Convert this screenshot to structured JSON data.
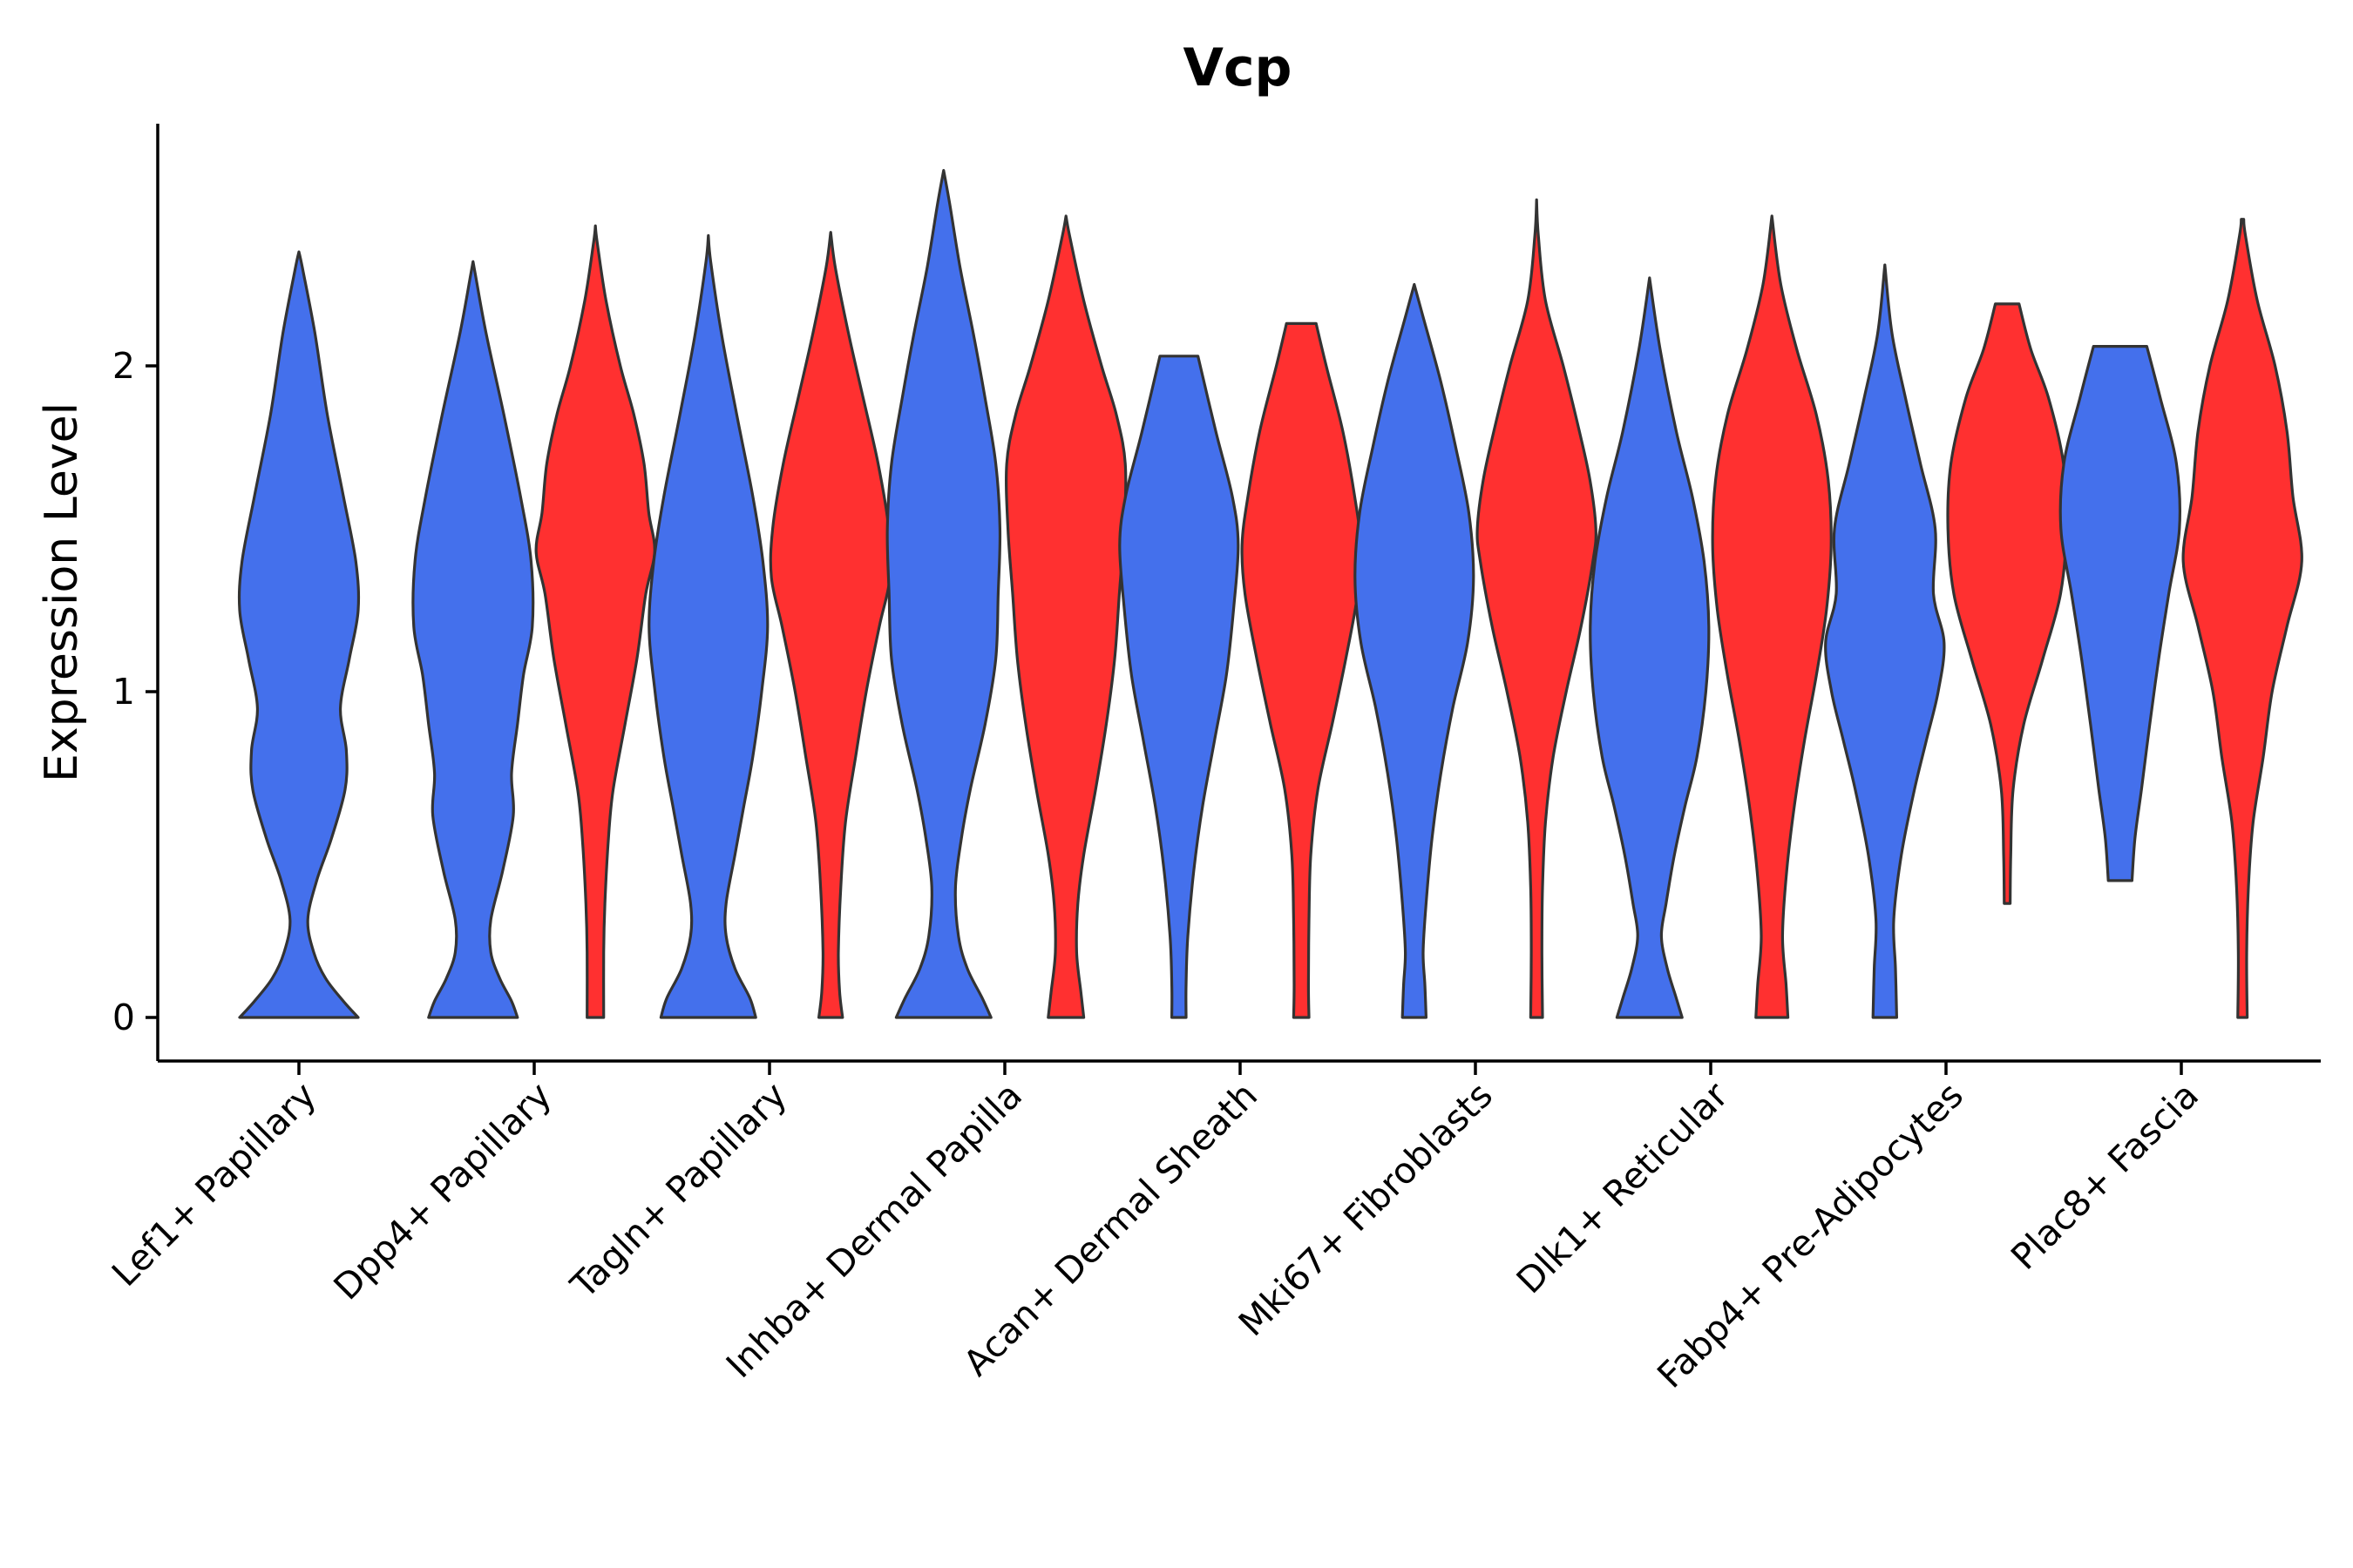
{
  "chart_data": {
    "type": "violin",
    "title": "Vcp",
    "xlabel": "",
    "ylabel": "Expression Level",
    "ylim": [
      -0.13,
      2.77
    ],
    "yticks": [
      0,
      1,
      2
    ],
    "legend": "none",
    "colors": {
      "blue": "#4470EC",
      "red": "#FF3030",
      "outline": "#333333"
    },
    "categories": [
      "Lef1+ Papillary",
      "Dpp4+ Papillary",
      "Tagln+ Papillary",
      "Inhba+ Dermal Papilla",
      "Acan+ Dermal Sheath",
      "Mki67+ Fibroblasts",
      "Dlk1+ Reticular",
      "Fabp4+ Pre-Adipocytes",
      "Plac8+ Fascia"
    ],
    "violins": [
      {
        "category": "Lef1+ Papillary",
        "group": "blue",
        "offset": 0.0,
        "min": 0.0,
        "max": 2.35,
        "profile": [
          [
            0,
            1.0
          ],
          [
            0.05,
            0.75
          ],
          [
            0.12,
            0.45
          ],
          [
            0.2,
            0.25
          ],
          [
            0.3,
            0.15
          ],
          [
            0.42,
            0.3
          ],
          [
            0.55,
            0.55
          ],
          [
            0.7,
            0.78
          ],
          [
            0.82,
            0.8
          ],
          [
            0.95,
            0.7
          ],
          [
            1.1,
            0.85
          ],
          [
            1.25,
            1.0
          ],
          [
            1.4,
            0.96
          ],
          [
            1.6,
            0.75
          ],
          [
            1.85,
            0.48
          ],
          [
            2.1,
            0.27
          ],
          [
            2.3,
            0.06
          ],
          [
            2.35,
            0.0
          ]
        ]
      },
      {
        "category": "Dpp4+ Papillary",
        "group": "blue",
        "offset": -0.26,
        "min": 0.0,
        "max": 2.32,
        "profile": [
          [
            0,
            0.75
          ],
          [
            0.05,
            0.65
          ],
          [
            0.12,
            0.45
          ],
          [
            0.2,
            0.3
          ],
          [
            0.3,
            0.3
          ],
          [
            0.45,
            0.5
          ],
          [
            0.62,
            0.68
          ],
          [
            0.75,
            0.65
          ],
          [
            0.9,
            0.75
          ],
          [
            1.05,
            0.85
          ],
          [
            1.2,
            1.0
          ],
          [
            1.4,
            0.98
          ],
          [
            1.6,
            0.8
          ],
          [
            1.85,
            0.52
          ],
          [
            2.1,
            0.22
          ],
          [
            2.28,
            0.04
          ],
          [
            2.32,
            0.0
          ]
        ]
      },
      {
        "category": "Dpp4+ Papillary",
        "group": "red",
        "offset": 0.26,
        "min": 0.0,
        "max": 2.43,
        "profile": [
          [
            0,
            0.14
          ],
          [
            0.2,
            0.14
          ],
          [
            0.35,
            0.16
          ],
          [
            0.55,
            0.22
          ],
          [
            0.7,
            0.3
          ],
          [
            0.9,
            0.5
          ],
          [
            1.1,
            0.7
          ],
          [
            1.3,
            0.85
          ],
          [
            1.43,
            1.0
          ],
          [
            1.55,
            0.9
          ],
          [
            1.7,
            0.82
          ],
          [
            1.85,
            0.65
          ],
          [
            2.0,
            0.42
          ],
          [
            2.2,
            0.18
          ],
          [
            2.38,
            0.03
          ],
          [
            2.43,
            0.0
          ]
        ]
      },
      {
        "category": "Tagln+ Papillary",
        "group": "blue",
        "offset": -0.26,
        "min": 0.0,
        "max": 2.4,
        "profile": [
          [
            0,
            0.8
          ],
          [
            0.06,
            0.7
          ],
          [
            0.15,
            0.45
          ],
          [
            0.25,
            0.3
          ],
          [
            0.35,
            0.3
          ],
          [
            0.5,
            0.45
          ],
          [
            0.65,
            0.6
          ],
          [
            0.8,
            0.75
          ],
          [
            1.0,
            0.9
          ],
          [
            1.2,
            1.0
          ],
          [
            1.4,
            0.92
          ],
          [
            1.6,
            0.75
          ],
          [
            1.85,
            0.48
          ],
          [
            2.1,
            0.22
          ],
          [
            2.32,
            0.04
          ],
          [
            2.4,
            0.0
          ]
        ]
      },
      {
        "category": "Tagln+ Papillary",
        "group": "red",
        "offset": 0.26,
        "min": 0.0,
        "max": 2.41,
        "profile": [
          [
            0,
            0.2
          ],
          [
            0.08,
            0.15
          ],
          [
            0.2,
            0.13
          ],
          [
            0.4,
            0.17
          ],
          [
            0.6,
            0.25
          ],
          [
            0.8,
            0.42
          ],
          [
            1.0,
            0.6
          ],
          [
            1.2,
            0.82
          ],
          [
            1.35,
            1.0
          ],
          [
            1.5,
            0.98
          ],
          [
            1.7,
            0.8
          ],
          [
            1.9,
            0.55
          ],
          [
            2.1,
            0.3
          ],
          [
            2.3,
            0.08
          ],
          [
            2.41,
            0.0
          ]
        ]
      },
      {
        "category": "Inhba+ Dermal Papilla",
        "group": "blue",
        "offset": -0.26,
        "min": 0.0,
        "max": 2.6,
        "profile": [
          [
            0,
            0.8
          ],
          [
            0.06,
            0.65
          ],
          [
            0.15,
            0.4
          ],
          [
            0.25,
            0.25
          ],
          [
            0.4,
            0.2
          ],
          [
            0.55,
            0.3
          ],
          [
            0.7,
            0.45
          ],
          [
            0.9,
            0.7
          ],
          [
            1.1,
            0.88
          ],
          [
            1.3,
            0.92
          ],
          [
            1.5,
            0.95
          ],
          [
            1.7,
            0.88
          ],
          [
            1.9,
            0.7
          ],
          [
            2.1,
            0.5
          ],
          [
            2.3,
            0.28
          ],
          [
            2.5,
            0.1
          ],
          [
            2.6,
            0.0
          ]
        ]
      },
      {
        "category": "Inhba+ Dermal Papilla",
        "group": "red",
        "offset": 0.26,
        "min": 0.0,
        "max": 2.46,
        "profile": [
          [
            0,
            0.3
          ],
          [
            0.08,
            0.25
          ],
          [
            0.2,
            0.18
          ],
          [
            0.35,
            0.2
          ],
          [
            0.5,
            0.3
          ],
          [
            0.7,
            0.5
          ],
          [
            0.9,
            0.68
          ],
          [
            1.1,
            0.82
          ],
          [
            1.3,
            0.9
          ],
          [
            1.5,
            0.98
          ],
          [
            1.7,
            1.0
          ],
          [
            1.85,
            0.85
          ],
          [
            2.0,
            0.6
          ],
          [
            2.2,
            0.3
          ],
          [
            2.4,
            0.06
          ],
          [
            2.46,
            0.0
          ]
        ]
      },
      {
        "category": "Acan+ Dermal Sheath",
        "group": "blue",
        "offset": -0.26,
        "min": 0.0,
        "max": 2.03,
        "profile": [
          [
            0,
            0.12
          ],
          [
            0.1,
            0.12
          ],
          [
            0.25,
            0.15
          ],
          [
            0.45,
            0.25
          ],
          [
            0.65,
            0.4
          ],
          [
            0.85,
            0.6
          ],
          [
            1.05,
            0.8
          ],
          [
            1.25,
            0.92
          ],
          [
            1.45,
            1.0
          ],
          [
            1.6,
            0.9
          ],
          [
            1.8,
            0.62
          ],
          [
            2.03,
            0.32
          ]
        ]
      },
      {
        "category": "Acan+ Dermal Sheath",
        "group": "red",
        "offset": 0.26,
        "min": 0.0,
        "max": 2.13,
        "profile": [
          [
            0,
            0.13
          ],
          [
            0.1,
            0.12
          ],
          [
            0.3,
            0.13
          ],
          [
            0.5,
            0.16
          ],
          [
            0.7,
            0.28
          ],
          [
            0.9,
            0.52
          ],
          [
            1.1,
            0.75
          ],
          [
            1.3,
            0.95
          ],
          [
            1.45,
            1.0
          ],
          [
            1.6,
            0.9
          ],
          [
            1.8,
            0.7
          ],
          [
            2.0,
            0.42
          ],
          [
            2.13,
            0.25
          ]
        ]
      },
      {
        "category": "Mki67+ Fibroblasts",
        "group": "blue",
        "offset": -0.26,
        "min": 0.0,
        "max": 2.25,
        "profile": [
          [
            0,
            0.2
          ],
          [
            0.1,
            0.18
          ],
          [
            0.2,
            0.15
          ],
          [
            0.35,
            0.2
          ],
          [
            0.55,
            0.3
          ],
          [
            0.75,
            0.45
          ],
          [
            0.95,
            0.65
          ],
          [
            1.15,
            0.9
          ],
          [
            1.35,
            1.0
          ],
          [
            1.55,
            0.92
          ],
          [
            1.75,
            0.7
          ],
          [
            1.95,
            0.45
          ],
          [
            2.15,
            0.15
          ],
          [
            2.25,
            0.0
          ]
        ]
      },
      {
        "category": "Mki67+ Fibroblasts",
        "group": "red",
        "offset": 0.26,
        "min": 0.0,
        "max": 2.51,
        "profile": [
          [
            0,
            0.1
          ],
          [
            0.2,
            0.09
          ],
          [
            0.4,
            0.1
          ],
          [
            0.6,
            0.15
          ],
          [
            0.8,
            0.28
          ],
          [
            1.0,
            0.5
          ],
          [
            1.2,
            0.75
          ],
          [
            1.4,
            0.95
          ],
          [
            1.5,
            1.0
          ],
          [
            1.65,
            0.9
          ],
          [
            1.8,
            0.72
          ],
          [
            2.0,
            0.45
          ],
          [
            2.2,
            0.15
          ],
          [
            2.4,
            0.03
          ],
          [
            2.51,
            0.0
          ]
        ]
      },
      {
        "category": "Dlk1+ Reticular",
        "group": "blue",
        "offset": -0.26,
        "min": 0.0,
        "max": 2.27,
        "profile": [
          [
            0,
            0.55
          ],
          [
            0.06,
            0.45
          ],
          [
            0.15,
            0.3
          ],
          [
            0.25,
            0.2
          ],
          [
            0.35,
            0.28
          ],
          [
            0.5,
            0.42
          ],
          [
            0.65,
            0.6
          ],
          [
            0.8,
            0.8
          ],
          [
            1.0,
            0.95
          ],
          [
            1.2,
            1.0
          ],
          [
            1.4,
            0.92
          ],
          [
            1.6,
            0.72
          ],
          [
            1.8,
            0.45
          ],
          [
            2.05,
            0.18
          ],
          [
            2.27,
            0.0
          ]
        ]
      },
      {
        "category": "Dlk1+ Reticular",
        "group": "red",
        "offset": 0.26,
        "min": 0.0,
        "max": 2.46,
        "profile": [
          [
            0,
            0.27
          ],
          [
            0.1,
            0.24
          ],
          [
            0.25,
            0.18
          ],
          [
            0.45,
            0.25
          ],
          [
            0.65,
            0.38
          ],
          [
            0.85,
            0.55
          ],
          [
            1.05,
            0.75
          ],
          [
            1.25,
            0.92
          ],
          [
            1.45,
            1.0
          ],
          [
            1.65,
            0.95
          ],
          [
            1.85,
            0.75
          ],
          [
            2.05,
            0.42
          ],
          [
            2.25,
            0.15
          ],
          [
            2.46,
            0.0
          ]
        ]
      },
      {
        "category": "Fabp4+ Pre-Adipocytes",
        "group": "blue",
        "offset": -0.26,
        "min": 0.0,
        "max": 2.31,
        "profile": [
          [
            0,
            0.2
          ],
          [
            0.15,
            0.18
          ],
          [
            0.3,
            0.15
          ],
          [
            0.5,
            0.28
          ],
          [
            0.7,
            0.5
          ],
          [
            0.85,
            0.7
          ],
          [
            1.0,
            0.9
          ],
          [
            1.15,
            1.0
          ],
          [
            1.3,
            0.82
          ],
          [
            1.5,
            0.85
          ],
          [
            1.7,
            0.6
          ],
          [
            1.9,
            0.35
          ],
          [
            2.1,
            0.12
          ],
          [
            2.31,
            0.0
          ]
        ]
      },
      {
        "category": "Fabp4+ Pre-Adipocytes",
        "group": "red",
        "offset": 0.26,
        "min": 0.35,
        "max": 2.19,
        "profile": [
          [
            0.35,
            0.05
          ],
          [
            0.5,
            0.06
          ],
          [
            0.7,
            0.1
          ],
          [
            0.9,
            0.28
          ],
          [
            1.1,
            0.6
          ],
          [
            1.3,
            0.9
          ],
          [
            1.5,
            1.0
          ],
          [
            1.7,
            0.95
          ],
          [
            1.9,
            0.7
          ],
          [
            2.05,
            0.4
          ],
          [
            2.19,
            0.2
          ]
        ]
      },
      {
        "category": "Plac8+ Fascia",
        "group": "blue",
        "offset": -0.26,
        "min": 0.42,
        "max": 2.06,
        "profile": [
          [
            0.42,
            0.2
          ],
          [
            0.55,
            0.25
          ],
          [
            0.7,
            0.36
          ],
          [
            0.9,
            0.5
          ],
          [
            1.1,
            0.65
          ],
          [
            1.3,
            0.82
          ],
          [
            1.5,
            1.0
          ],
          [
            1.7,
            0.95
          ],
          [
            1.9,
            0.68
          ],
          [
            2.06,
            0.45
          ]
        ]
      },
      {
        "category": "Plac8+ Fascia",
        "group": "red",
        "offset": 0.26,
        "min": 0.0,
        "max": 2.45,
        "profile": [
          [
            0,
            0.08
          ],
          [
            0.2,
            0.07
          ],
          [
            0.4,
            0.1
          ],
          [
            0.6,
            0.18
          ],
          [
            0.8,
            0.35
          ],
          [
            1.0,
            0.5
          ],
          [
            1.2,
            0.75
          ],
          [
            1.4,
            1.0
          ],
          [
            1.6,
            0.85
          ],
          [
            1.8,
            0.75
          ],
          [
            2.0,
            0.55
          ],
          [
            2.2,
            0.25
          ],
          [
            2.4,
            0.05
          ],
          [
            2.45,
            0.02
          ]
        ]
      }
    ]
  }
}
